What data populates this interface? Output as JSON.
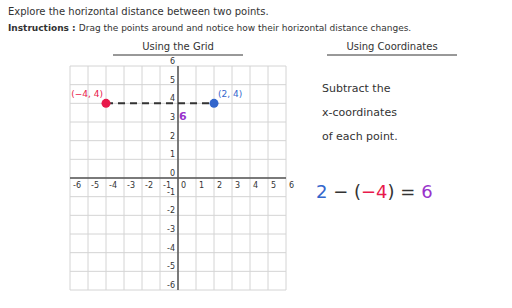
{
  "chart_data": {
    "type": "scatter",
    "title": "Explore the horizontal distance between two points.",
    "instructions": {
      "lead": "Instructions : ",
      "text": "Drag the points around and notice how their horizontal distance changes."
    },
    "panel_titles": [
      "Using the Grid",
      "Using Coordinates"
    ],
    "xlim": [
      -6,
      6
    ],
    "ylim": [
      -6,
      6
    ],
    "xticks": [
      -6,
      -5,
      -4,
      -3,
      -2,
      -1,
      0,
      1,
      2,
      3,
      4,
      5,
      6
    ],
    "yticks": [
      -6,
      -5,
      -4,
      -3,
      -2,
      -1,
      0,
      1,
      2,
      3,
      4,
      5,
      6
    ],
    "grid": true,
    "line_style": "dashed",
    "points": [
      {
        "x": -4,
        "y": 4,
        "label": "(−4, 4)",
        "color": "#e8194b"
      },
      {
        "x": 2,
        "y": 4,
        "label": "(2, 4)",
        "color": "#3366cc"
      }
    ],
    "annotations": [
      {
        "text": "6",
        "x": 0.05,
        "y": 3.7,
        "color": "#9933cc"
      }
    ],
    "explanation": [
      "Subtract the",
      "x-coordinates",
      "of each point."
    ],
    "equation": [
      {
        "text": "2",
        "color": "#3366cc"
      },
      {
        "text": " − (",
        "color": "#333333"
      },
      {
        "text": "−4",
        "color": "#e8194b"
      },
      {
        "text": ") = ",
        "color": "#333333"
      },
      {
        "text": "6",
        "color": "#9933cc"
      }
    ]
  }
}
